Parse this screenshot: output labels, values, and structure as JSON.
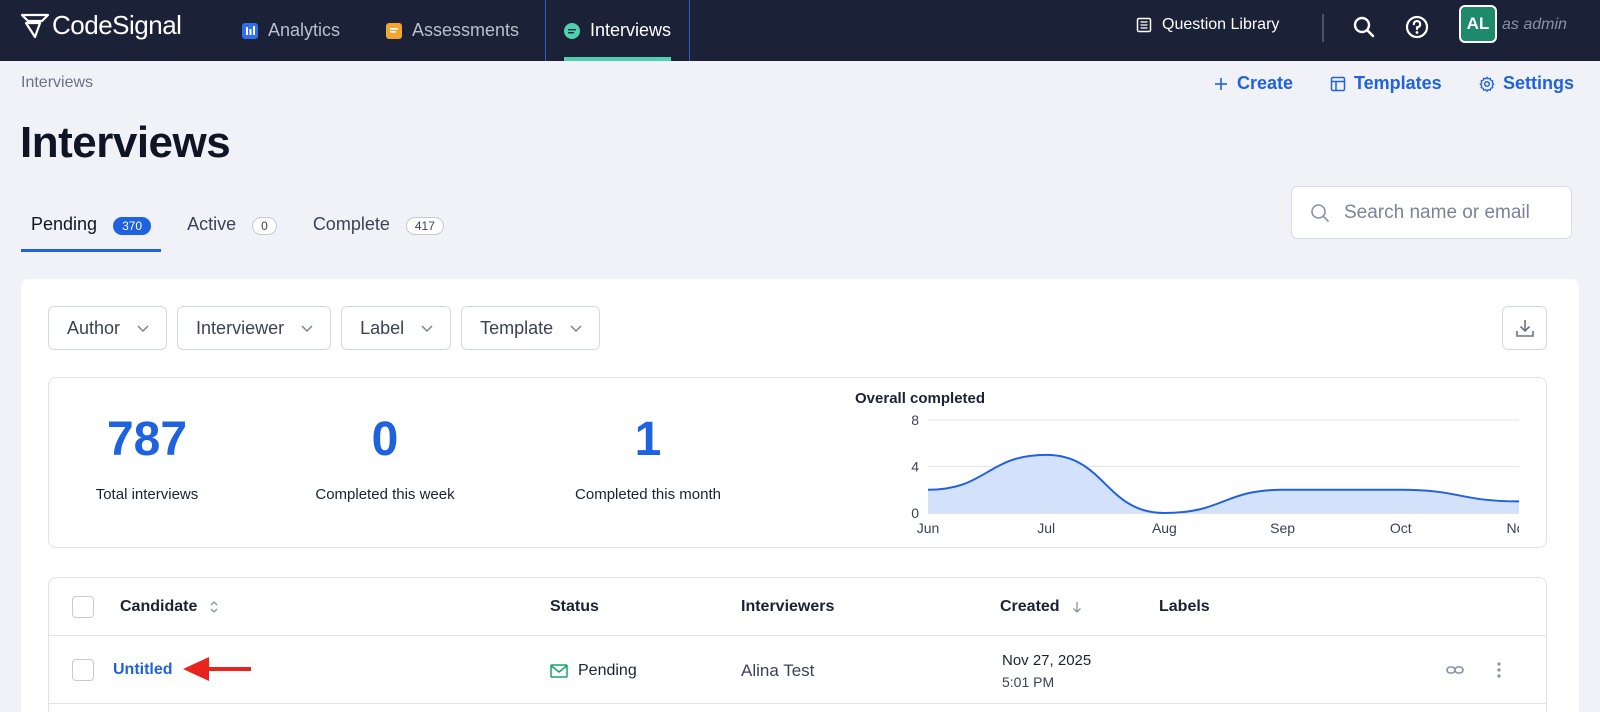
{
  "nav": {
    "brand": "CodeSignal",
    "tabs": [
      {
        "label": "Analytics",
        "icon": "analytics-icon"
      },
      {
        "label": "Assessments",
        "icon": "assessments-icon"
      },
      {
        "label": "Interviews",
        "icon": "interviews-icon",
        "active": true
      }
    ],
    "question_library": "Question Library",
    "avatar_initials": "AL",
    "role": "as admin"
  },
  "header": {
    "breadcrumb": "Interviews",
    "actions": {
      "create": "Create",
      "templates": "Templates",
      "settings": "Settings"
    },
    "title": "Interviews"
  },
  "tabs": [
    {
      "label": "Pending",
      "count": "370",
      "active": true
    },
    {
      "label": "Active",
      "count": "0"
    },
    {
      "label": "Complete",
      "count": "417"
    }
  ],
  "search": {
    "placeholder": "Search name or email"
  },
  "filters": [
    "Author",
    "Interviewer",
    "Label",
    "Template"
  ],
  "stats": [
    {
      "value": "787",
      "label": "Total interviews"
    },
    {
      "value": "0",
      "label": "Completed this week"
    },
    {
      "value": "1",
      "label": "Completed this month"
    }
  ],
  "chart_data": {
    "type": "area",
    "title": "Overall completed",
    "categories": [
      "Jun",
      "Jul",
      "Aug",
      "Sep",
      "Oct",
      "Nov"
    ],
    "values": [
      2,
      5,
      0,
      2,
      2,
      1
    ],
    "yticks": [
      "0",
      "4",
      "8"
    ],
    "ylim": [
      0,
      8
    ],
    "grid": true,
    "colors": {
      "line": "#1f62e0",
      "fill": "#d3e1fb"
    }
  },
  "table": {
    "columns": {
      "candidate": "Candidate",
      "status": "Status",
      "interviewers": "Interviewers",
      "created": "Created",
      "labels": "Labels"
    },
    "rows": [
      {
        "candidate": "Untitled",
        "status": "Pending",
        "interviewers": "Alina Test",
        "created_date": "Nov 27, 2025",
        "created_time": "5:01 PM"
      }
    ]
  },
  "colors": {
    "accent": "#1f62e0",
    "nav_bg": "#1b2238",
    "active_underline": "#4fd0b1",
    "pending_green": "#17a36b",
    "annotation_arrow": "#e8251c"
  }
}
